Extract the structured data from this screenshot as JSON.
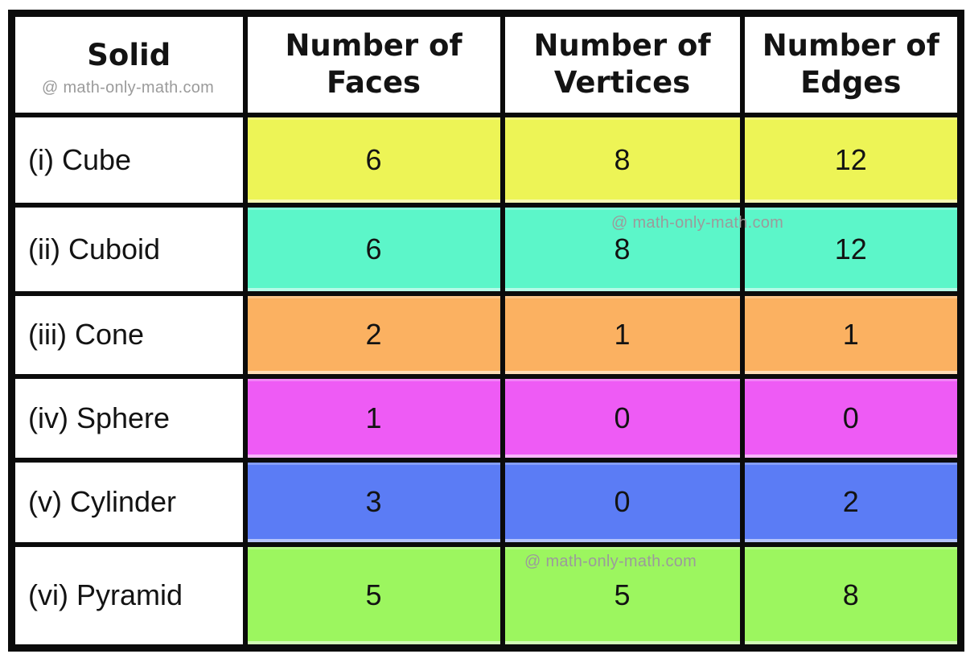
{
  "watermark": {
    "text": "@ math-only-math.com"
  },
  "colors": {
    "page_background": "#ffffff",
    "table_border": "#0b0b0b",
    "header_background": "#ffffff",
    "text": "#131313",
    "watermark_text": "#9b9b9b",
    "row_cube": "#edf456",
    "row_cuboid": "#5cf6c9",
    "row_cone": "#fbb161",
    "row_sphere": "#ee5bf5",
    "row_cylinder": "#5b7cf5",
    "row_pyramid": "#9cf65f"
  },
  "chart_data": {
    "type": "table",
    "columns": [
      "Solid",
      "Number of Faces",
      "Number of Vertices",
      "Number of Edges"
    ],
    "rows": [
      {
        "solid": "(i) Cube",
        "faces": 6,
        "vertices": 8,
        "edges": 12,
        "color": "#edf456"
      },
      {
        "solid": "(ii) Cuboid",
        "faces": 6,
        "vertices": 8,
        "edges": 12,
        "color": "#5cf6c9"
      },
      {
        "solid": "(iii) Cone",
        "faces": 2,
        "vertices": 1,
        "edges": 1,
        "color": "#fbb161"
      },
      {
        "solid": "(iv) Sphere",
        "faces": 1,
        "vertices": 0,
        "edges": 0,
        "color": "#ee5bf5"
      },
      {
        "solid": "(v) Cylinder",
        "faces": 3,
        "vertices": 0,
        "edges": 2,
        "color": "#5b7cf5"
      },
      {
        "solid": "(vi) Pyramid",
        "faces": 5,
        "vertices": 5,
        "edges": 8,
        "color": "#9cf65f"
      }
    ]
  }
}
